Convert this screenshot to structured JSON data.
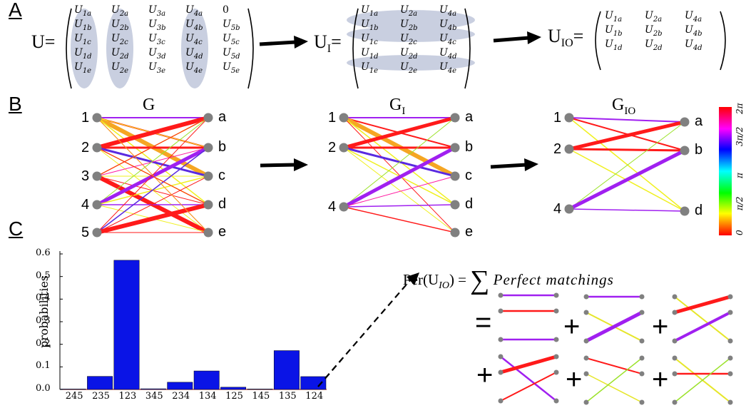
{
  "panels": {
    "a": "A",
    "b": "B",
    "c": "C"
  },
  "matrices": {
    "u": {
      "label": "U",
      "rows": [
        [
          "U1a",
          "U2a",
          "U3a",
          "U4a",
          "0"
        ],
        [
          "U1b",
          "U2b",
          "U3b",
          "U4b",
          "U5b"
        ],
        [
          "U1c",
          "U2c",
          "U3c",
          "U4c",
          "U5c"
        ],
        [
          "U1d",
          "U2d",
          "U3d",
          "U4d",
          "U5d"
        ],
        [
          "U1e",
          "U2e",
          "U3e",
          "U4e",
          "U5e"
        ]
      ]
    },
    "ui": {
      "label": "U",
      "sub": "I",
      "rows": [
        [
          "U1a",
          "U2a",
          "U4a"
        ],
        [
          "U1b",
          "U2b",
          "U4b"
        ],
        [
          "U1c",
          "U2c",
          "U4c"
        ],
        [
          "U1d",
          "U2d",
          "U4d"
        ],
        [
          "U1e",
          "U2e",
          "U4e"
        ]
      ]
    },
    "uio": {
      "label": "U",
      "sub": "IO",
      "rows": [
        [
          "U1a",
          "U2a",
          "U4a"
        ],
        [
          "U1b",
          "U2b",
          "U4b"
        ],
        [
          "U1d",
          "U2d",
          "U4d"
        ]
      ]
    }
  },
  "graphs": {
    "g": {
      "label": "G",
      "sub": "",
      "left": [
        "1",
        "2",
        "3",
        "4",
        "5"
      ],
      "right": [
        "a",
        "b",
        "c",
        "d",
        "e"
      ]
    },
    "gi": {
      "label": "G",
      "sub": "I",
      "left": [
        "1",
        "2",
        "4"
      ],
      "right": [
        "a",
        "b",
        "c",
        "d",
        "e"
      ]
    },
    "gio": {
      "label": "G",
      "sub": "IO",
      "left": [
        "1",
        "2",
        "4"
      ],
      "right": [
        "a",
        "b",
        "d"
      ]
    }
  },
  "colorbar": {
    "ticks": [
      "0",
      "π/2",
      "π",
      "3π/2",
      "2π"
    ]
  },
  "chart_data": {
    "type": "bar",
    "ylabel": "probabilities",
    "xlabel": "",
    "categories": [
      "245",
      "235",
      "123",
      "345",
      "234",
      "134",
      "125",
      "145",
      "135",
      "124"
    ],
    "values": [
      0.002,
      0.058,
      0.572,
      0.003,
      0.032,
      0.082,
      0.01,
      0.002,
      0.172,
      0.057
    ],
    "ylim": [
      0,
      0.6
    ],
    "yticks": [
      "0.0",
      "0.1",
      "0.2",
      "0.3",
      "0.4",
      "0.5",
      "0.6"
    ],
    "colors": {
      "bar": "#0a14e6"
    }
  },
  "formula": {
    "lhs": "Per(U",
    "lhs_sub": "IO",
    "rhs": "Perfect matchings"
  },
  "symbols": {
    "equals": "=",
    "plus": "+"
  }
}
